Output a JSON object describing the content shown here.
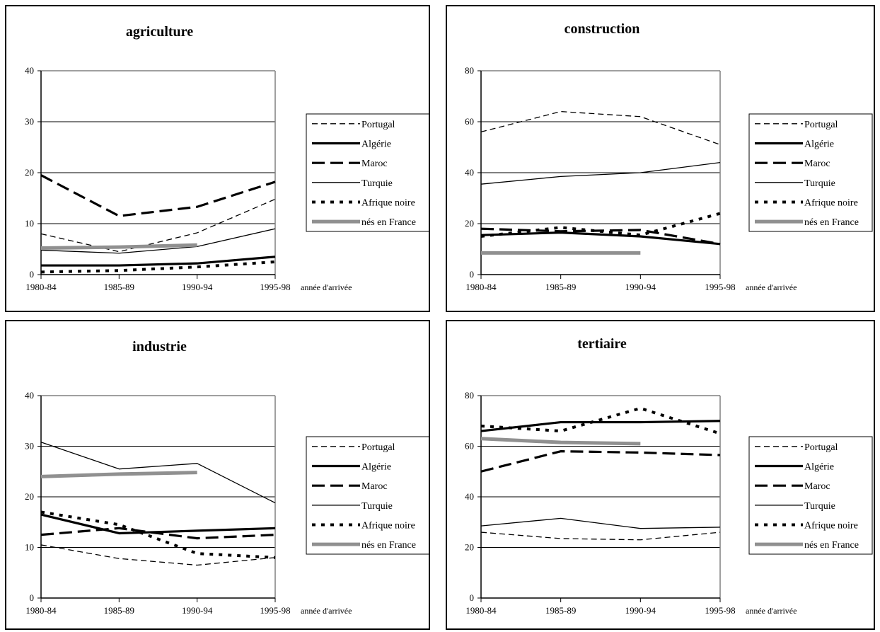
{
  "chart_data": [
    {
      "type": "line",
      "title": "agriculture",
      "categories": [
        "1980-84",
        "1985-89",
        "1990-94",
        "1995-98"
      ],
      "xlabel": "année d'arrivée",
      "ylabel": "",
      "ylim": [
        0,
        40
      ],
      "yticks": [
        "0",
        "10",
        "20",
        "30",
        "40"
      ],
      "grid": true,
      "legend": "right",
      "series": [
        {
          "name": "Portugal",
          "values": [
            8,
            4.5,
            8.2,
            14.8
          ]
        },
        {
          "name": "Algérie",
          "values": [
            1.8,
            1.8,
            2.2,
            3.5
          ]
        },
        {
          "name": "Maroc",
          "values": [
            19.5,
            11.5,
            13.3,
            18.2
          ]
        },
        {
          "name": "Turquie",
          "values": [
            4.8,
            4.2,
            5.5,
            9
          ]
        },
        {
          "name": "Afrique noire",
          "values": [
            0.5,
            0.8,
            1.5,
            2.5
          ]
        },
        {
          "name": "nés en France",
          "values": [
            5.2,
            5.4,
            5.8,
            null
          ]
        }
      ]
    },
    {
      "type": "line",
      "title": "construction",
      "categories": [
        "1980-84",
        "1985-89",
        "1990-94",
        "1995-98"
      ],
      "xlabel": "année d'arrivée",
      "ylabel": "",
      "ylim": [
        0,
        80
      ],
      "yticks": [
        "0",
        "20",
        "40",
        "60",
        "80"
      ],
      "grid": true,
      "legend": "right",
      "series": [
        {
          "name": "Portugal",
          "values": [
            56,
            64,
            62,
            51
          ]
        },
        {
          "name": "Algérie",
          "values": [
            15.5,
            16.5,
            15,
            12
          ]
        },
        {
          "name": "Maroc",
          "values": [
            18,
            17,
            17.5,
            12
          ]
        },
        {
          "name": "Turquie",
          "values": [
            35.5,
            38.5,
            40,
            44
          ]
        },
        {
          "name": "Afrique noire",
          "values": [
            15,
            18.5,
            15.5,
            24
          ]
        },
        {
          "name": "nés en France",
          "values": [
            8.5,
            8.5,
            8.5,
            null
          ]
        }
      ]
    },
    {
      "type": "line",
      "title": "industrie",
      "categories": [
        "1980-84",
        "1985-89",
        "1990-94",
        "1995-98"
      ],
      "xlabel": "année d'arrivée",
      "ylabel": "",
      "ylim": [
        0,
        40
      ],
      "yticks": [
        "0",
        "10",
        "20",
        "30",
        "40"
      ],
      "grid": true,
      "legend": "right",
      "series": [
        {
          "name": "Portugal",
          "values": [
            10.5,
            7.8,
            6.5,
            8
          ]
        },
        {
          "name": "Algérie",
          "values": [
            16.5,
            12.8,
            13.3,
            13.8
          ]
        },
        {
          "name": "Maroc",
          "values": [
            12.5,
            13.8,
            11.8,
            12.5
          ]
        },
        {
          "name": "Turquie",
          "values": [
            30.8,
            25.5,
            26.6,
            18.8
          ]
        },
        {
          "name": "Afrique noire",
          "values": [
            17,
            14.5,
            8.8,
            8
          ]
        },
        {
          "name": "nés en France",
          "values": [
            24,
            24.5,
            24.8,
            null
          ]
        }
      ]
    },
    {
      "type": "line",
      "title": "tertiaire",
      "categories": [
        "1980-84",
        "1985-89",
        "1990-94",
        "1995-98"
      ],
      "xlabel": "année d'arrivée",
      "ylabel": "",
      "ylim": [
        0,
        80
      ],
      "yticks": [
        "0",
        "20",
        "40",
        "60",
        "80"
      ],
      "grid": true,
      "legend": "right",
      "series": [
        {
          "name": "Portugal",
          "values": [
            26,
            23.5,
            23,
            26
          ]
        },
        {
          "name": "Algérie",
          "values": [
            66,
            69.5,
            69.5,
            70
          ]
        },
        {
          "name": "Maroc",
          "values": [
            50,
            58,
            57.5,
            56.5
          ]
        },
        {
          "name": "Turquie",
          "values": [
            28.5,
            31.5,
            27.5,
            28
          ]
        },
        {
          "name": "Afrique noire",
          "values": [
            68,
            66,
            75,
            65
          ]
        },
        {
          "name": "nés en France",
          "values": [
            63,
            61.5,
            61,
            null
          ]
        }
      ]
    }
  ],
  "styles": {
    "Portugal": {
      "color": "#000000",
      "width": 1.3,
      "dash": "8,5"
    },
    "Algérie": {
      "color": "#000000",
      "width": 3.2,
      "dash": ""
    },
    "Maroc": {
      "color": "#000000",
      "width": 3.2,
      "dash": "18,8"
    },
    "Turquie": {
      "color": "#000000",
      "width": 1.3,
      "dash": ""
    },
    "Afrique noire": {
      "color": "#000000",
      "width": 4,
      "dash": "5,8"
    },
    "nés en France": {
      "color": "#909090",
      "width": 5,
      "dash": ""
    }
  }
}
